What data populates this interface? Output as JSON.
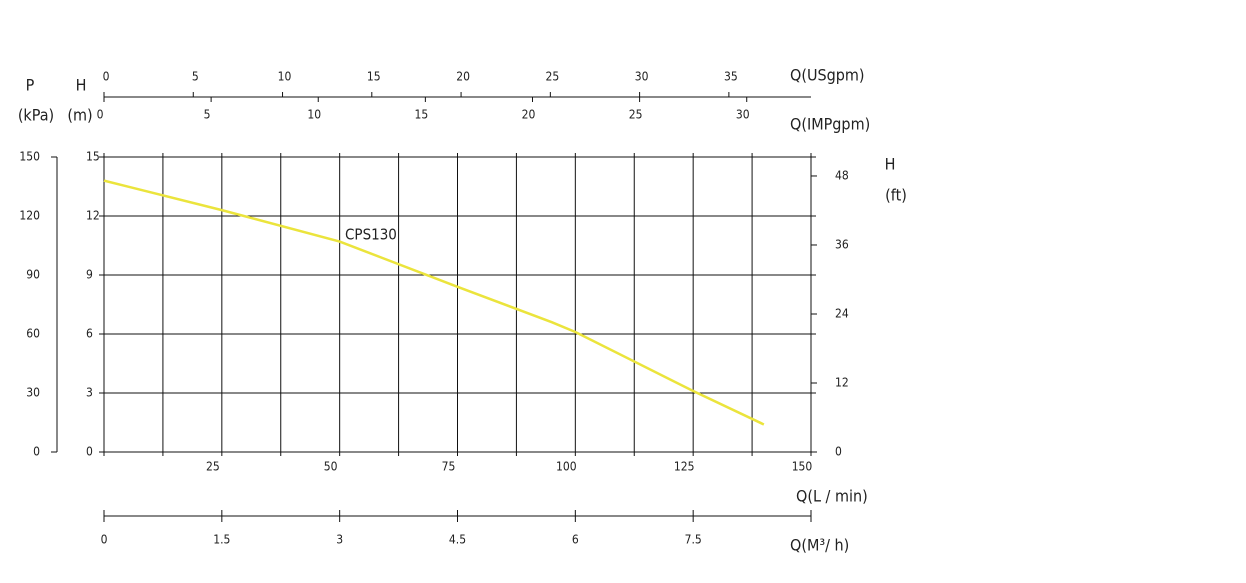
{
  "chart_data": {
    "type": "line",
    "x_label": "Q(L / min)",
    "y_label": "H",
    "y_unit": "(m)",
    "xlim": [
      0,
      150
    ],
    "xticks": [
      25,
      50,
      75,
      100,
      125,
      150
    ],
    "xgrid": [
      0,
      12.5,
      25,
      37.5,
      50,
      62.5,
      75,
      87.5,
      100,
      112.5,
      125,
      137.5,
      150
    ],
    "ylim": [
      0,
      15
    ],
    "yticks": [
      0,
      3,
      6,
      9,
      12,
      15
    ],
    "grid": true,
    "x": [
      0,
      25,
      50,
      75,
      95,
      100,
      125,
      140
    ],
    "series": [
      {
        "name": "CPS130",
        "color": "#ebe43c",
        "values": [
          13.8,
          12.3,
          10.7,
          8.4,
          6.6,
          6.1,
          3.1,
          1.4
        ]
      }
    ],
    "p_axis": {
      "label": "P",
      "unit": "(kPa)",
      "lim": [
        0,
        150
      ],
      "ticks": [
        0,
        30,
        60,
        90,
        120,
        150
      ]
    },
    "ft_axis": {
      "label": "H",
      "unit": "(ft)",
      "lim": [
        0,
        51.3
      ],
      "ticks": [
        0,
        12,
        24,
        36,
        48
      ]
    },
    "usgpm_axis": {
      "label": "Q(USgpm)",
      "lim": [
        0,
        39.6
      ],
      "ticks": [
        0,
        5,
        10,
        15,
        20,
        25,
        30,
        35
      ]
    },
    "impgpm_axis": {
      "label": "Q(IMPgpm)",
      "lim": [
        0,
        33
      ],
      "ticks": [
        0,
        5,
        10,
        15,
        20,
        25,
        30
      ]
    },
    "m3h_axis": {
      "label": "Q(M³/ h)",
      "lim": [
        0,
        9
      ],
      "ticks": [
        0,
        1.5,
        3,
        4.5,
        6,
        7.5
      ]
    }
  }
}
